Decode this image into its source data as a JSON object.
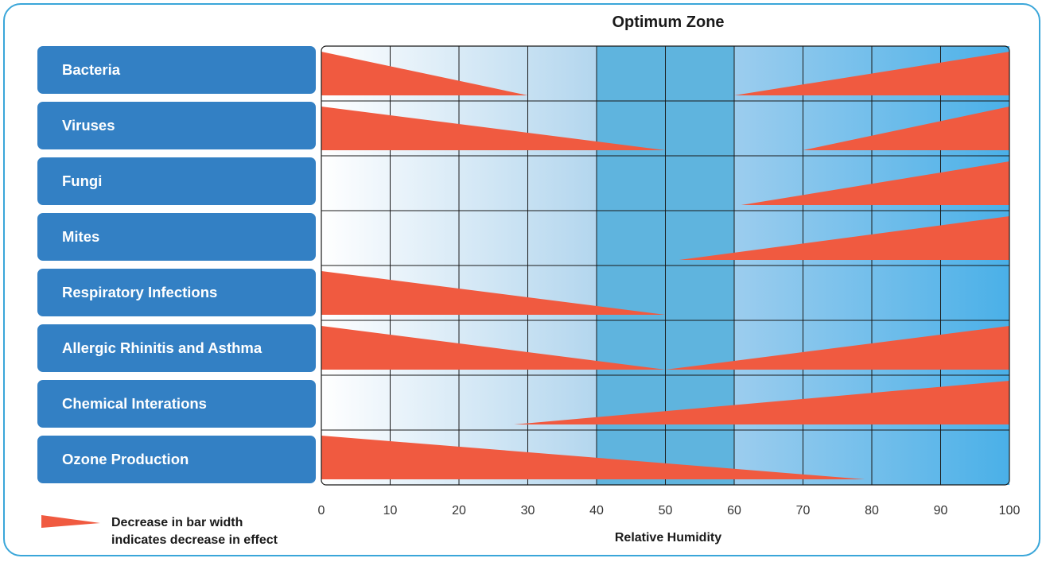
{
  "zone_title": "Optimum Zone",
  "legend": {
    "line1": "Decrease in bar width",
    "line2": "indicates decrease in effect"
  },
  "colors": {
    "category_box": "#3380c4",
    "wedge": "#f05a40",
    "zone": "#5fb4de",
    "frame": "#3aa6d9"
  },
  "chart_data": {
    "type": "bar",
    "xlabel": "Relative Humidity",
    "xlim": [
      0,
      100
    ],
    "xticks": [
      0,
      10,
      20,
      30,
      40,
      50,
      60,
      70,
      80,
      90,
      100
    ],
    "optimum_zone": [
      40,
      60
    ],
    "categories": [
      "Bacteria",
      "Viruses",
      "Fungi",
      "Mites",
      "Respiratory Infections",
      "Allergic Rhinitis and Asthma",
      "Chemical Interations",
      "Ozone Production"
    ],
    "wedges": [
      [
        {
          "from": 0,
          "to": 30,
          "direction": "decreasing"
        },
        {
          "from": 60,
          "to": 100,
          "direction": "increasing"
        }
      ],
      [
        {
          "from": 0,
          "to": 50,
          "direction": "decreasing"
        },
        {
          "from": 70,
          "to": 100,
          "direction": "increasing"
        }
      ],
      [
        {
          "from": 61,
          "to": 100,
          "direction": "increasing"
        }
      ],
      [
        {
          "from": 52,
          "to": 100,
          "direction": "increasing"
        }
      ],
      [
        {
          "from": 0,
          "to": 50,
          "direction": "decreasing"
        }
      ],
      [
        {
          "from": 0,
          "to": 50,
          "direction": "decreasing"
        },
        {
          "from": 50,
          "to": 100,
          "direction": "increasing"
        }
      ],
      [
        {
          "from": 28,
          "to": 100,
          "direction": "increasing"
        }
      ],
      [
        {
          "from": 0,
          "to": 79,
          "direction": "decreasing"
        }
      ]
    ]
  }
}
